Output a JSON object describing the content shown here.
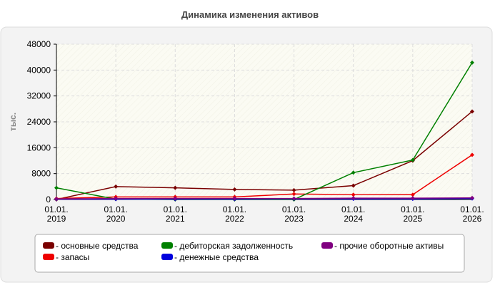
{
  "chart_data": {
    "type": "line",
    "title": "Динамика изменения активов",
    "y_label": "тыс.",
    "categories": [
      "01.01.2019",
      "01.01.2020",
      "01.01.2021",
      "01.01.2022",
      "01.01.2023",
      "01.01.2024",
      "01.01.2025",
      "01.01.2026"
    ],
    "series": [
      {
        "name": "основные средства",
        "color": "#7a0000",
        "values": [
          0,
          4000,
          3600,
          3100,
          2900,
          4300,
          12000,
          27200
        ]
      },
      {
        "name": "запасы",
        "color": "#ee0000",
        "values": [
          300,
          800,
          800,
          800,
          1700,
          1500,
          1500,
          13800
        ]
      },
      {
        "name": "дебиторская задолженность",
        "color": "#008000",
        "values": [
          3600,
          100,
          0,
          0,
          0,
          8300,
          12200,
          42300
        ]
      },
      {
        "name": "денежные средства",
        "color": "#0000dd",
        "values": [
          100,
          100,
          100,
          100,
          200,
          200,
          200,
          300
        ]
      },
      {
        "name": "прочие оборотные активы",
        "color": "#800080",
        "values": [
          200,
          300,
          300,
          300,
          300,
          400,
          400,
          500
        ]
      }
    ],
    "ylim": [
      0,
      48000
    ],
    "yticks": [
      0,
      8000,
      16000,
      24000,
      32000,
      40000,
      48000
    ],
    "grid": true
  }
}
